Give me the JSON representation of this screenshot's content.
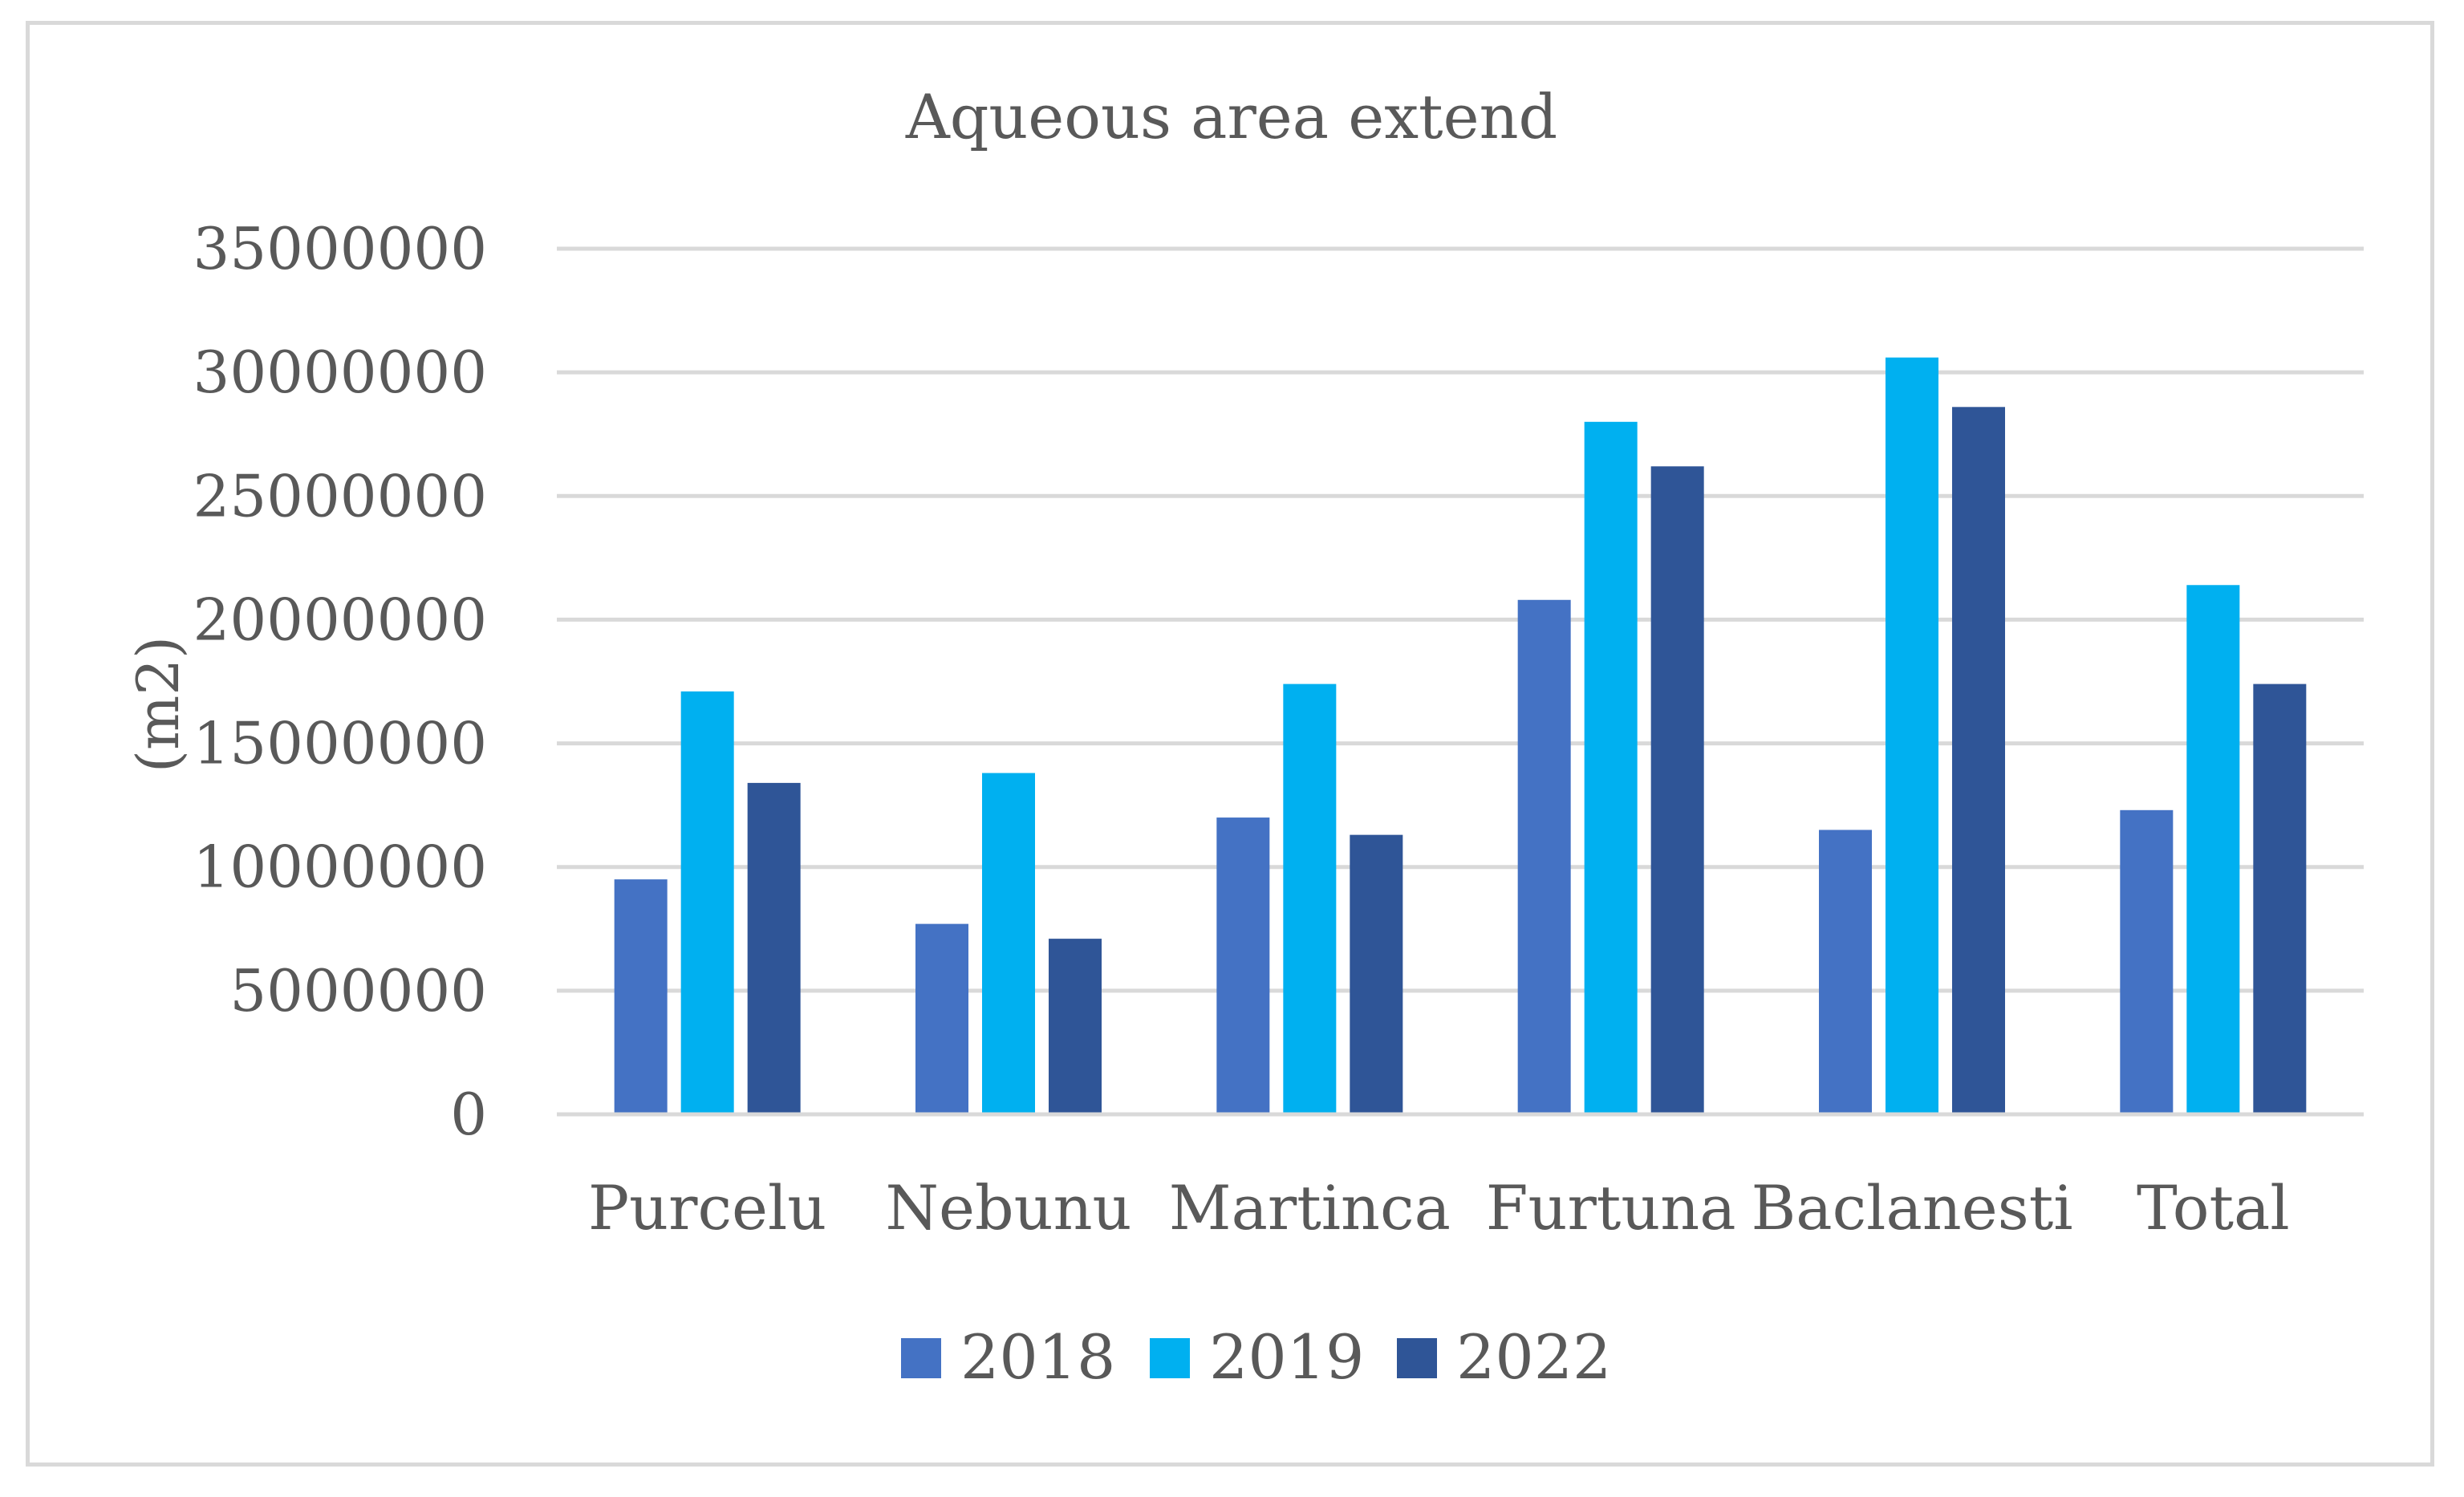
{
  "chart_data": {
    "type": "bar",
    "title": "Aqueous area extend",
    "xlabel": "",
    "ylabel": "(m2)",
    "ylim": [
      0,
      35000000
    ],
    "y_ticks": [
      {
        "value": 0,
        "label": "0"
      },
      {
        "value": 5000000,
        "label": "5000000"
      },
      {
        "value": 10000000,
        "label": "10000000"
      },
      {
        "value": 15000000,
        "label": "15000000"
      },
      {
        "value": 20000000,
        "label": "20000000"
      },
      {
        "value": 25000000,
        "label": "25000000"
      },
      {
        "value": 30000000,
        "label": "30000000"
      },
      {
        "value": 35000000,
        "label": "35000000"
      }
    ],
    "categories": [
      "Purcelu",
      "Nebunu",
      "Martinca",
      "Furtuna",
      "Baclanesti",
      "Total"
    ],
    "series": [
      {
        "name": "2018",
        "color": "#4472c4",
        "values": [
          9500000,
          7700000,
          12000000,
          20800000,
          11500000,
          12300000
        ]
      },
      {
        "name": "2019",
        "color": "#00b0f0",
        "values": [
          17100000,
          13800000,
          17400000,
          28000000,
          30600000,
          21400000
        ]
      },
      {
        "name": "2022",
        "color": "#2f5597",
        "values": [
          13400000,
          7100000,
          11300000,
          26200000,
          28600000,
          17400000
        ]
      }
    ],
    "grid": true,
    "legend": "bottom"
  }
}
